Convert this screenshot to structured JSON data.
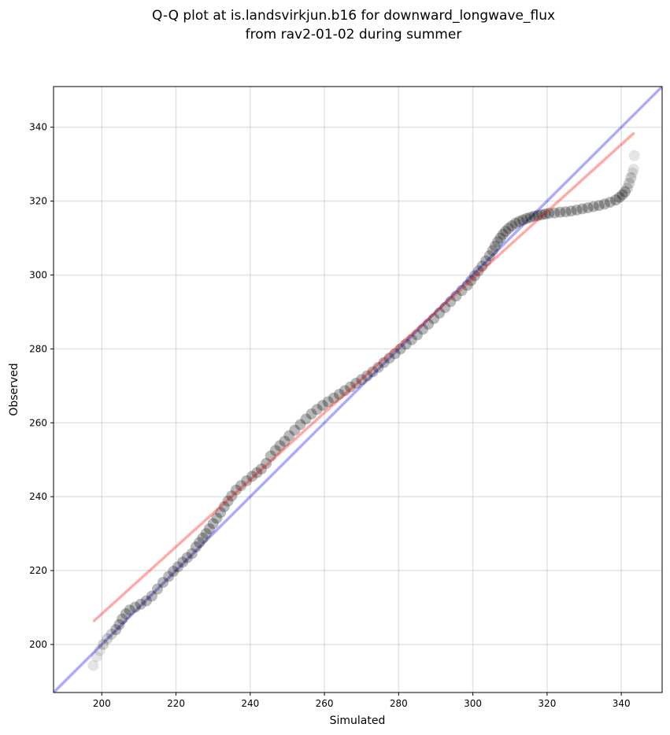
{
  "chart_data": {
    "type": "scatter",
    "title": [
      "Q-Q plot at is.landsvirkjun.b16 for downward_longwave_flux",
      "from rav2-01-02 during summer"
    ],
    "xlabel": "Simulated",
    "ylabel": "Observed",
    "xlim": [
      187,
      351
    ],
    "ylim": [
      187,
      351
    ],
    "xticks": [
      200,
      220,
      240,
      260,
      280,
      300,
      320,
      340
    ],
    "yticks": [
      200,
      220,
      240,
      260,
      280,
      300,
      320,
      340
    ],
    "grid": true,
    "points_color": "#000000",
    "identity_line": {
      "name": "1:1",
      "color": "#0000ff",
      "x": [
        187,
        351
      ],
      "y": [
        187,
        351
      ]
    },
    "fit_line": {
      "color": "#ff0000",
      "x": [
        197.7,
        343.5
      ],
      "y": [
        206.2,
        338.5
      ]
    },
    "series": [
      {
        "x": [
          197.7,
          198.6,
          199.5,
          200.4,
          201.5,
          202.6,
          203.8,
          204.7,
          205.5,
          206.5,
          207.5,
          209.0,
          210.5,
          212.0,
          213.5,
          215.0,
          216.5,
          218.0,
          219.3,
          220.5,
          221.8,
          223.0,
          224.3,
          225.4,
          226.3,
          227.2,
          228.1,
          229.0,
          230.0,
          231.0,
          232.0,
          233.0,
          234.0,
          235.0,
          236.2,
          237.5,
          239.0,
          240.5,
          241.8,
          243.0,
          244.3,
          245.5,
          246.8,
          248.0,
          249.3,
          250.5,
          252.0,
          253.5,
          255.0,
          256.5,
          258.0,
          259.5,
          261.0,
          262.5,
          264.0,
          265.5,
          267.0,
          268.5,
          270.0,
          271.5,
          273.0,
          274.5,
          276.0,
          277.5,
          279.0,
          280.5,
          282.0,
          283.5,
          285.0,
          286.5,
          288.0,
          289.5,
          291.0,
          292.5,
          294.0,
          295.5,
          297.0,
          298.5,
          299.5,
          300.5,
          301.5,
          302.5,
          303.5,
          304.5,
          305.3,
          306.0,
          306.7,
          307.4,
          308.1,
          308.8,
          309.6,
          310.5,
          311.5,
          312.5,
          313.5,
          314.5,
          315.5,
          316.5,
          317.5,
          318.5,
          319.5,
          320.5,
          322.0,
          323.5,
          325.0,
          326.5,
          328.0,
          329.5,
          331.0,
          332.5,
          334.0,
          335.5,
          337.0,
          338.5,
          339.5,
          340.3,
          341.0,
          341.6,
          342.1,
          342.6,
          343.0,
          343.3,
          343.5
        ],
        "y": [
          194.3,
          196.7,
          198.4,
          200.0,
          201.6,
          202.8,
          204.0,
          205.4,
          206.9,
          208.3,
          209.3,
          210.1,
          210.9,
          211.8,
          213.1,
          215.0,
          216.8,
          218.4,
          219.8,
          221.0,
          222.3,
          223.5,
          224.6,
          226.4,
          227.6,
          228.8,
          230.0,
          231.3,
          232.7,
          234.2,
          235.7,
          237.3,
          238.8,
          240.2,
          241.8,
          243.0,
          244.3,
          245.5,
          246.5,
          247.5,
          249.0,
          251.0,
          252.5,
          253.8,
          255.0,
          256.5,
          258.0,
          259.5,
          261.0,
          262.4,
          263.6,
          264.7,
          265.7,
          266.7,
          267.7,
          268.7,
          269.7,
          270.7,
          271.7,
          272.7,
          273.8,
          275.0,
          276.3,
          277.5,
          278.7,
          280.0,
          281.3,
          282.5,
          283.8,
          285.3,
          286.7,
          288.2,
          289.7,
          291.2,
          292.8,
          294.3,
          295.8,
          297.2,
          298.5,
          299.8,
          301.1,
          302.4,
          303.8,
          305.2,
          306.6,
          307.8,
          309.0,
          310.0,
          311.0,
          311.8,
          312.6,
          313.3,
          314.0,
          314.5,
          314.9,
          315.3,
          315.6,
          315.9,
          316.1,
          316.3,
          316.5,
          316.7,
          316.8,
          317.0,
          317.1,
          317.3,
          317.6,
          317.9,
          318.2,
          318.5,
          318.8,
          319.2,
          319.7,
          320.3,
          321.0,
          321.7,
          322.5,
          323.5,
          324.8,
          326.3,
          327.6,
          328.6,
          332.3
        ]
      }
    ]
  }
}
